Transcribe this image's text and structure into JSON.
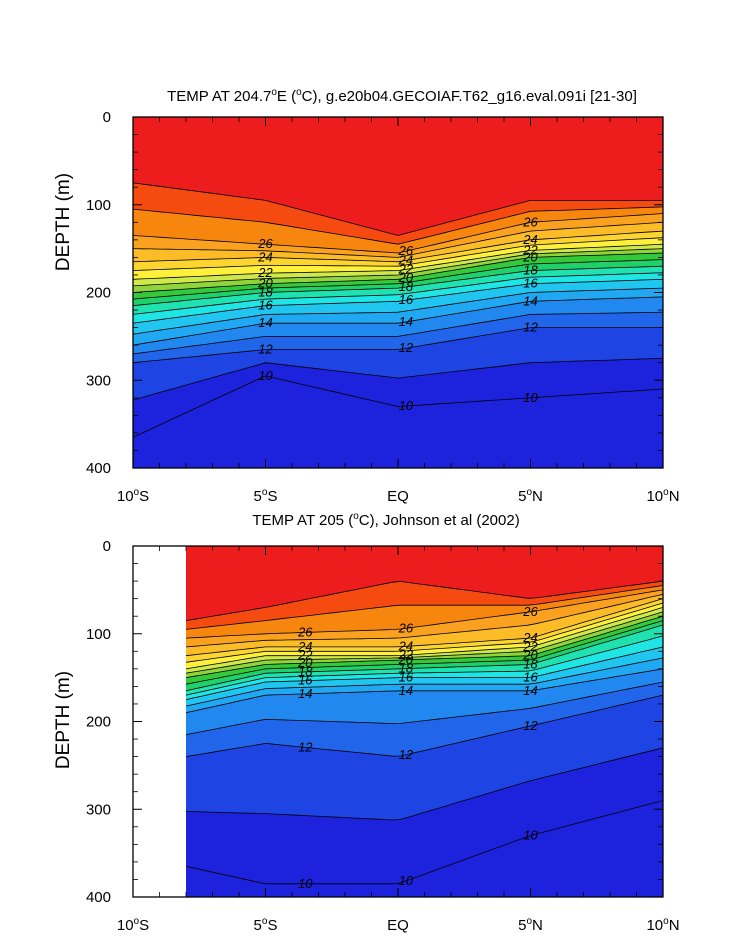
{
  "chart_data": [
    {
      "type": "contour",
      "title_prefix": "TEMP AT 204.7",
      "title_suffix": "E (",
      "title_unit": "C), g.e20b04.GECOIAF.T62_g16.eval.091i [21-30]",
      "title_text": "TEMP AT 204.7°E (°C), g.e20b04.GECOIAF.T62_g16.eval.091i [21-30]",
      "ylabel": "DEPTH (m)",
      "xlim": [
        -10,
        10
      ],
      "ylim": [
        0,
        400
      ],
      "x_ticks": [
        {
          "value": -10,
          "num": "10",
          "hem": "S"
        },
        {
          "value": -5,
          "num": "5",
          "hem": "S"
        },
        {
          "value": 0,
          "num": "EQ",
          "hem": ""
        },
        {
          "value": 5,
          "num": "5",
          "hem": "N"
        },
        {
          "value": 10,
          "num": "10",
          "hem": "N"
        }
      ],
      "y_ticks": [
        0,
        100,
        200,
        300,
        400
      ],
      "data_xrange": [
        -10,
        10
      ],
      "isotherm_labels": [
        "26",
        "24",
        "22",
        "20",
        "18",
        "16",
        "14",
        "12",
        "10",
        "26",
        "24",
        "22",
        "20",
        "18",
        "16",
        "14",
        "12",
        "10",
        "26",
        "24",
        "22",
        "20",
        "18",
        "16",
        "14",
        "12",
        "10"
      ],
      "isotherm_depths": {
        "x": [
          -10,
          -5,
          0,
          5,
          10
        ],
        "t28": [
          75,
          95,
          135,
          95,
          95
        ],
        "t26": [
          135,
          145,
          155,
          120,
          110
        ],
        "t24": [
          165,
          160,
          165,
          140,
          130
        ],
        "t22": [
          185,
          178,
          175,
          152,
          145
        ],
        "t20": [
          200,
          190,
          185,
          160,
          155
        ],
        "t18": [
          215,
          200,
          195,
          175,
          170
        ],
        "t16": [
          235,
          215,
          210,
          190,
          185
        ],
        "t14": [
          260,
          235,
          235,
          210,
          205
        ],
        "t12": [
          280,
          265,
          265,
          240,
          240
        ],
        "t10": [
          365,
          295,
          330,
          320,
          310
        ]
      }
    },
    {
      "type": "contour",
      "title_prefix": "TEMP AT 205 (",
      "title_suffix": "",
      "title_unit": "C), Johnson et al (2002)",
      "title_text": "TEMP AT 205 (°C), Johnson et al (2002)",
      "ylabel": "DEPTH (m)",
      "xlim": [
        -10,
        10
      ],
      "ylim": [
        0,
        400
      ],
      "x_ticks": [
        {
          "value": -10,
          "num": "10",
          "hem": "S"
        },
        {
          "value": -5,
          "num": "5",
          "hem": "S"
        },
        {
          "value": 0,
          "num": "EQ",
          "hem": ""
        },
        {
          "value": 5,
          "num": "5",
          "hem": "N"
        },
        {
          "value": 10,
          "num": "10",
          "hem": "N"
        }
      ],
      "y_ticks": [
        0,
        100,
        200,
        300,
        400
      ],
      "data_xrange": [
        -8,
        10
      ],
      "isotherm_labels": [
        "26",
        "24",
        "22",
        "20",
        "18",
        "16",
        "14",
        "12",
        "10",
        "26",
        "24",
        "22",
        "20",
        "18",
        "16",
        "14",
        "12",
        "10",
        "26",
        "24",
        "22",
        "20",
        "18",
        "16",
        "14",
        "12",
        "10"
      ],
      "isotherm_depths": {
        "x": [
          -8,
          -5,
          0,
          5,
          10
        ],
        "t28": [
          85,
          70,
          40,
          60,
          40
        ],
        "t26": [
          105,
          100,
          95,
          75,
          50
        ],
        "t24": [
          125,
          115,
          115,
          105,
          60
        ],
        "t22": [
          140,
          125,
          125,
          115,
          70
        ],
        "t20": [
          150,
          135,
          130,
          125,
          80
        ],
        "t18": [
          165,
          145,
          140,
          135,
          90
        ],
        "t16": [
          175,
          155,
          150,
          150,
          115
        ],
        "t14": [
          190,
          170,
          165,
          165,
          140
        ],
        "t12": [
          240,
          225,
          240,
          205,
          170
        ],
        "t10": [
          365,
          385,
          385,
          330,
          290
        ]
      }
    }
  ]
}
